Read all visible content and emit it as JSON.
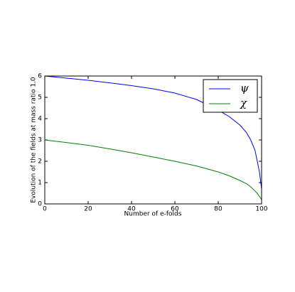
{
  "chart_data": {
    "type": "line",
    "xlabel": "Number of e-folds",
    "ylabel": "Evolution of the fields at mass ratio 1.0",
    "x": [
      0,
      10,
      20,
      30,
      40,
      50,
      60,
      70,
      80,
      85,
      90,
      93,
      95,
      97,
      98,
      99,
      100
    ],
    "series": [
      {
        "name": "ψ",
        "color": "#0000ff",
        "values": [
          6,
          5.9,
          5.8,
          5.68,
          5.55,
          5.4,
          5.2,
          4.9,
          4.4,
          4.1,
          3.7,
          3.35,
          3.0,
          2.5,
          2.0,
          1.5,
          0.7
        ]
      },
      {
        "name": "χ",
        "color": "#008000",
        "values": [
          3,
          2.88,
          2.75,
          2.58,
          2.4,
          2.2,
          2.0,
          1.78,
          1.5,
          1.32,
          1.1,
          0.95,
          0.8,
          0.6,
          0.5,
          0.35,
          0.2
        ]
      }
    ],
    "xlim": [
      0,
      100
    ],
    "ylim": [
      0,
      6
    ],
    "xticks": [
      0,
      20,
      40,
      60,
      80,
      100
    ],
    "yticks": [
      0,
      1,
      2,
      3,
      4,
      5,
      6
    ],
    "legend": "upper right"
  }
}
